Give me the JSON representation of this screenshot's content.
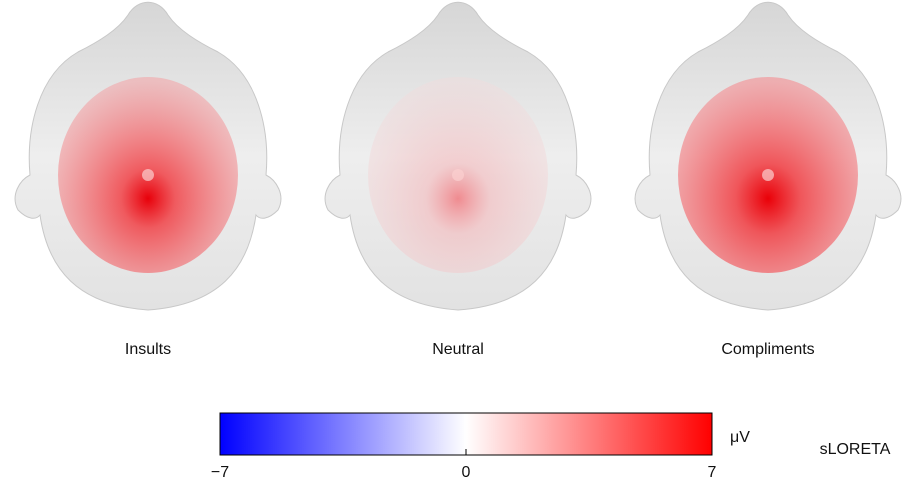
{
  "chart_data": {
    "type": "topomap",
    "panels": [
      "Insults",
      "Neutral",
      "Compliments"
    ],
    "colorbar": {
      "clim": [
        -7,
        7
      ],
      "ticks": [
        {
          "value": -7,
          "label": "−7"
        },
        0,
        7
      ],
      "unit": "μV",
      "colors": [
        "#0000ff",
        "#ffffff",
        "#ff0000"
      ]
    },
    "method": "sLORETA"
  }
}
